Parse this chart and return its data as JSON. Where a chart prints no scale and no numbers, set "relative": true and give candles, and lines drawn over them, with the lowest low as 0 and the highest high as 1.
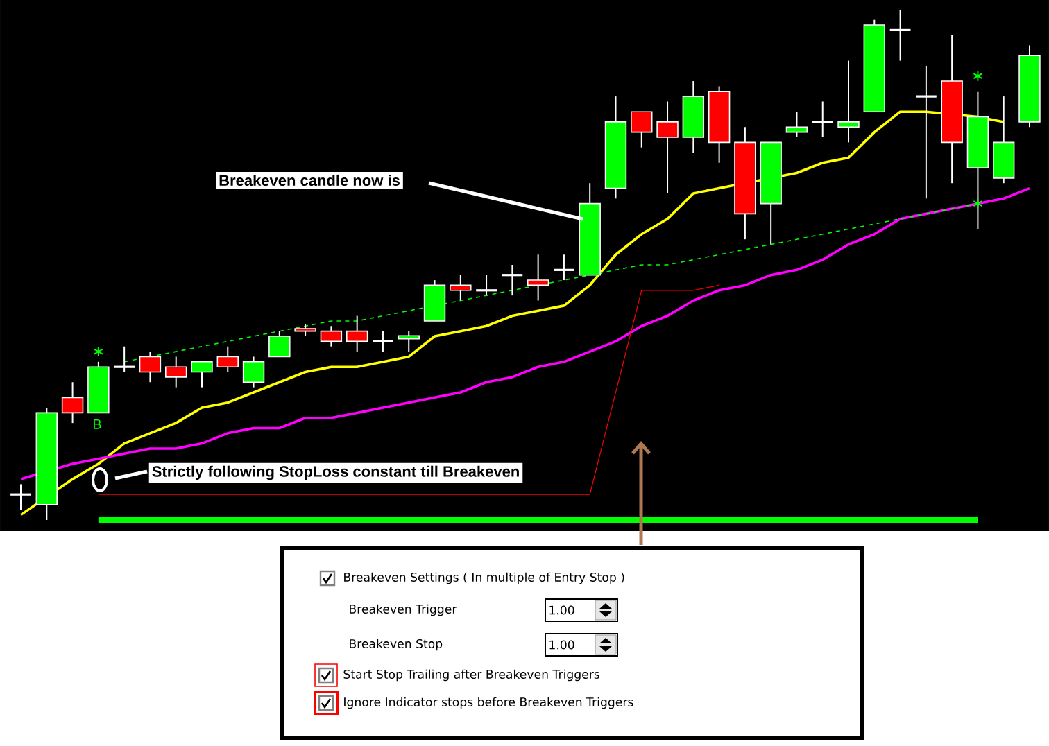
{
  "chart_data": {
    "type": "candlestick",
    "relative": true,
    "categories": [
      null,
      null,
      null,
      null,
      null,
      null,
      null,
      null,
      null,
      null,
      null,
      null,
      null,
      null,
      null,
      null,
      null,
      null,
      null,
      null,
      null,
      null,
      null,
      null,
      null,
      null,
      null,
      null,
      null,
      null,
      null,
      null,
      null,
      null,
      null,
      null,
      null,
      null,
      null,
      null
    ],
    "ohlc": [
      [
        0.05,
        0.07,
        0.02,
        0.05
      ],
      [
        0.03,
        0.22,
        0,
        0.21
      ],
      [
        0.24,
        0.27,
        0.19,
        0.21
      ],
      [
        0.21,
        0.31,
        0.21,
        0.3
      ],
      [
        0.3,
        0.34,
        0.29,
        0.3
      ],
      [
        0.32,
        0.33,
        0.27,
        0.29
      ],
      [
        0.3,
        0.32,
        0.26,
        0.28
      ],
      [
        0.29,
        0.31,
        0.26,
        0.31
      ],
      [
        0.32,
        0.34,
        0.29,
        0.3
      ],
      [
        0.27,
        0.32,
        0.26,
        0.31
      ],
      [
        0.32,
        0.37,
        0.32,
        0.36
      ],
      [
        0.375,
        0.383,
        0.36,
        0.37
      ],
      [
        0.37,
        0.38,
        0.34,
        0.35
      ],
      [
        0.37,
        0.4,
        0.33,
        0.35
      ],
      [
        0.35,
        0.37,
        0.33,
        0.35
      ],
      [
        0.355,
        0.37,
        0.33,
        0.361
      ],
      [
        0.39,
        0.47,
        0.39,
        0.46
      ],
      [
        0.46,
        0.48,
        0.43,
        0.45
      ],
      [
        0.45,
        0.48,
        0.44,
        0.45
      ],
      [
        0.48,
        0.5,
        0.44,
        0.48
      ],
      [
        0.47,
        0.52,
        0.43,
        0.46
      ],
      [
        0.49,
        0.52,
        0.47,
        0.49
      ],
      [
        0.48,
        0.66,
        0.48,
        0.62
      ],
      [
        0.65,
        0.83,
        0.63,
        0.78
      ],
      [
        0.8,
        0.8,
        0.73,
        0.76
      ],
      [
        0.78,
        0.82,
        0.64,
        0.75
      ],
      [
        0.75,
        0.86,
        0.72,
        0.83
      ],
      [
        0.84,
        0.85,
        0.7,
        0.74
      ],
      [
        0.74,
        0.77,
        0.55,
        0.6
      ],
      [
        0.62,
        0.74,
        0.54,
        0.74
      ],
      [
        0.76,
        0.8,
        0.75,
        0.77
      ],
      [
        0.78,
        0.82,
        0.75,
        0.78
      ],
      [
        0.77,
        0.9,
        0.74,
        0.78
      ],
      [
        0.8,
        0.98,
        0.8,
        0.97
      ],
      [
        0.96,
        1,
        0.9,
        0.96
      ],
      [
        0.83,
        0.89,
        0.63,
        0.83
      ],
      [
        0.86,
        0.95,
        0.66,
        0.74
      ],
      [
        0.69,
        0.84,
        0.57,
        0.79
      ],
      [
        0.67,
        0.83,
        0.66,
        0.74
      ],
      [
        0.78,
        0.93,
        0.77,
        0.91
      ]
    ],
    "colors": [
      "#ffffff",
      "#00ff00",
      "#ff0000",
      "#00ff00",
      "#ffffff",
      "#ff0000",
      "#ff0000",
      "#00ff00",
      "#ff0000",
      "#00ff00",
      "#00ff00",
      "#ff0000",
      "#ff0000",
      "#ff0000",
      "#ffffff",
      "#00ff00",
      "#00ff00",
      "#ff0000",
      "#ffffff",
      "#ffffff",
      "#ff0000",
      "#ffffff",
      "#00ff00",
      "#00ff00",
      "#ff0000",
      "#ff0000",
      "#00ff00",
      "#ff0000",
      "#ff0000",
      "#00ff00",
      "#00ff00",
      "#ffffff",
      "#00ff00",
      "#00ff00",
      "#ffffff",
      "#ffffff",
      "#ff0000",
      "#00ff00",
      "#00ff00",
      "#00ff00"
    ],
    "series": [
      {
        "type": "line",
        "color": "#ffff00",
        "values": [
          0.01,
          null,
          0.08,
          0.11,
          0.15,
          0.17,
          0.19,
          0.22,
          0.23,
          0.25,
          0.27,
          0.29,
          0.3,
          0.3,
          0.31,
          0.32,
          0.36,
          0.37,
          0.38,
          0.4,
          0.41,
          0.42,
          0.46,
          0.52,
          0.56,
          0.59,
          0.64,
          0.65,
          null,
          null,
          0.68,
          0.7,
          0.71,
          0.76,
          0.8,
          0.8,
          null,
          0.79,
          0.78,
          null
        ]
      },
      {
        "type": "line",
        "color": "#ff00ff",
        "values": [
          0.08,
          null,
          0.11,
          0.12,
          0.13,
          0.14,
          0.14,
          0.15,
          0.17,
          0.18,
          0.18,
          0.2,
          0.2,
          0.21,
          0.22,
          0.23,
          0.24,
          0.25,
          0.27,
          0.28,
          0.3,
          0.31,
          0.33,
          0.35,
          0.38,
          0.4,
          0.43,
          0.45,
          0.46,
          0.48,
          0.49,
          0.51,
          0.54,
          0.56,
          0.59,
          0.6,
          0.61,
          0.62,
          0.63,
          0.65
        ]
      },
      {
        "type": "line",
        "color": "#00ff00",
        "line_style": "dashed",
        "values": [
          null,
          null,
          null,
          null,
          0.31,
          0.32,
          0.33,
          0.34,
          0.35,
          0.36,
          0.37,
          0.38,
          0.39,
          0.39,
          0.4,
          0.41,
          0.42,
          0.43,
          0.44,
          0.45,
          0.46,
          0.47,
          0.48,
          0.49,
          0.5,
          0.5,
          0.51,
          0.52,
          0.53,
          0.54,
          0.55,
          0.56,
          0.57,
          0.58,
          0.59,
          0.6,
          0.61,
          0.62,
          null,
          null
        ]
      },
      {
        "type": "line",
        "color": "#ff0000",
        "values": [
          null,
          null,
          null,
          0.05,
          0.05,
          0.05,
          0.05,
          0.05,
          0.05,
          0.05,
          0.05,
          0.05,
          0.05,
          0.05,
          0.05,
          0.05,
          0.05,
          0.05,
          0.05,
          0.05,
          0.05,
          0.05,
          0.05,
          0.25,
          0.45,
          0.45,
          0.45,
          0.46,
          null,
          null,
          null,
          null,
          null,
          null,
          null,
          null,
          null,
          null,
          null,
          null
        ]
      },
      {
        "type": "line",
        "color": "#00ff00",
        "values": [
          null,
          null,
          null,
          0,
          0,
          0,
          0,
          0,
          0,
          0,
          0,
          0,
          0,
          0,
          0,
          0,
          0,
          0,
          0,
          0,
          0,
          0,
          0,
          0,
          0,
          0,
          0,
          0,
          0,
          0,
          0,
          0,
          0,
          0,
          0,
          0,
          0,
          0,
          null,
          null
        ]
      },
      {
        "type": "scatter",
        "color": "#00ff00",
        "marker": "cross",
        "values": [
          null,
          null,
          null,
          0.33,
          null,
          null,
          null,
          null,
          null,
          null,
          null,
          null,
          null,
          null,
          null,
          null,
          null,
          null,
          null,
          null,
          null,
          null,
          null,
          null,
          null,
          null,
          null,
          null,
          null,
          null,
          null,
          null,
          null,
          null,
          null,
          null,
          null,
          0.87,
          null,
          null
        ]
      },
      {
        "type": "scatter",
        "color": "#00ff00",
        "marker": "cross",
        "values": [
          null,
          null,
          null,
          null,
          null,
          null,
          null,
          null,
          null,
          null,
          null,
          null,
          null,
          null,
          null,
          null,
          null,
          null,
          null,
          null,
          null,
          null,
          null,
          null,
          null,
          null,
          null,
          null,
          null,
          null,
          null,
          null,
          null,
          null,
          null,
          null,
          null,
          0.62,
          null,
          null
        ]
      }
    ],
    "annotations": [
      "Breakeven candle now is",
      "Strictly following StopLoss constant till Breakeven",
      "B",
      "Breakeven Settings ( In multiple of Entry Stop )",
      "Breakeven Trigger",
      "1.00",
      "Breakeven Stop",
      "1.00",
      "Start Stop Trailing after Breakeven Triggers",
      "Ignore Indicator stops before Breakeven Triggers"
    ]
  }
}
